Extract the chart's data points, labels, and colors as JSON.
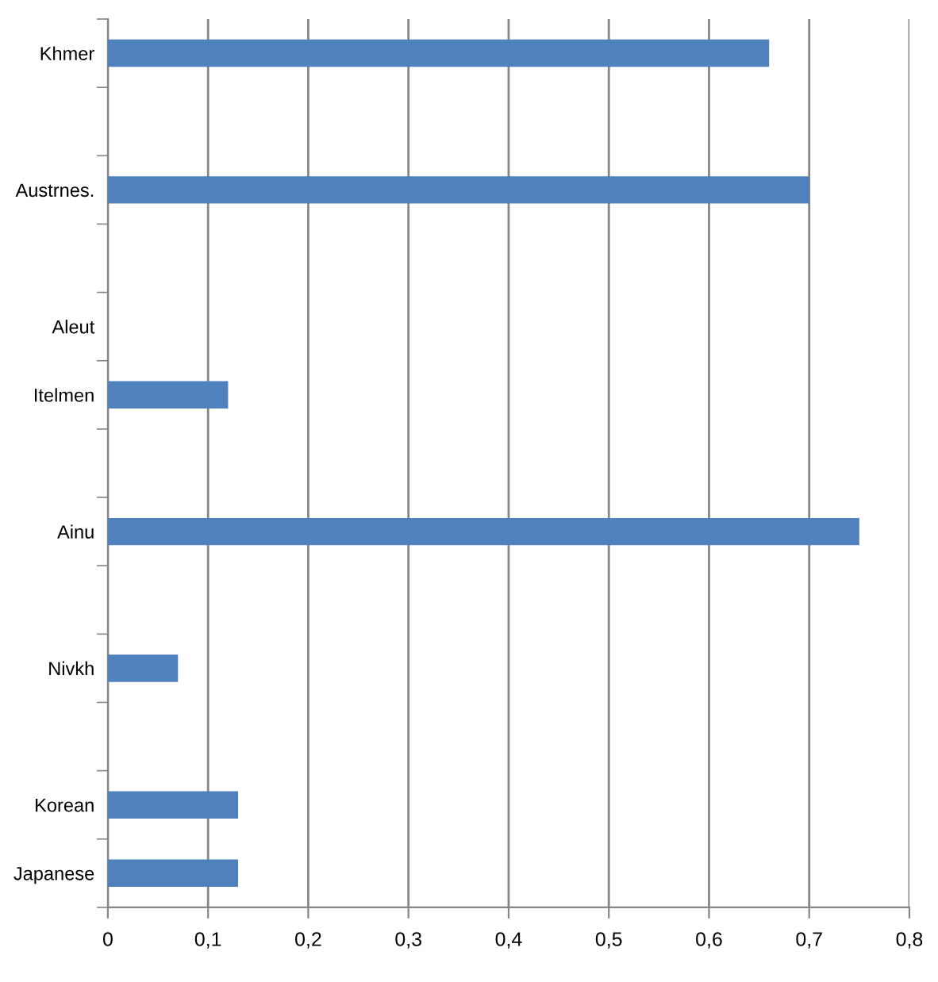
{
  "chart_data": {
    "type": "bar",
    "orientation": "horizontal",
    "categories": [
      "Khmer",
      null,
      "Austrnes.",
      null,
      "Aleut",
      "Itelmen",
      null,
      "Ainu",
      null,
      "Nivkh",
      null,
      "Korean",
      "Japanese"
    ],
    "values": [
      0.66,
      null,
      0.7,
      null,
      null,
      0.12,
      null,
      0.75,
      null,
      0.07,
      null,
      0.13,
      0.13
    ],
    "color": "#4f81bd",
    "xlim": [
      0,
      0.8
    ],
    "xticks": [
      0,
      {
        "value": 0.1,
        "label": "0,1"
      },
      {
        "value": 0.2,
        "label": "0,2"
      },
      {
        "value": 0.3,
        "label": "0,3"
      },
      {
        "value": 0.4,
        "label": "0,4"
      },
      {
        "value": 0.5,
        "label": "0,5"
      },
      {
        "value": 0.6,
        "label": "0,6"
      },
      {
        "value": 0.7,
        "label": "0,7"
      },
      {
        "value": 0.8,
        "label": "0,8"
      }
    ],
    "grid": "x",
    "legend": false
  }
}
